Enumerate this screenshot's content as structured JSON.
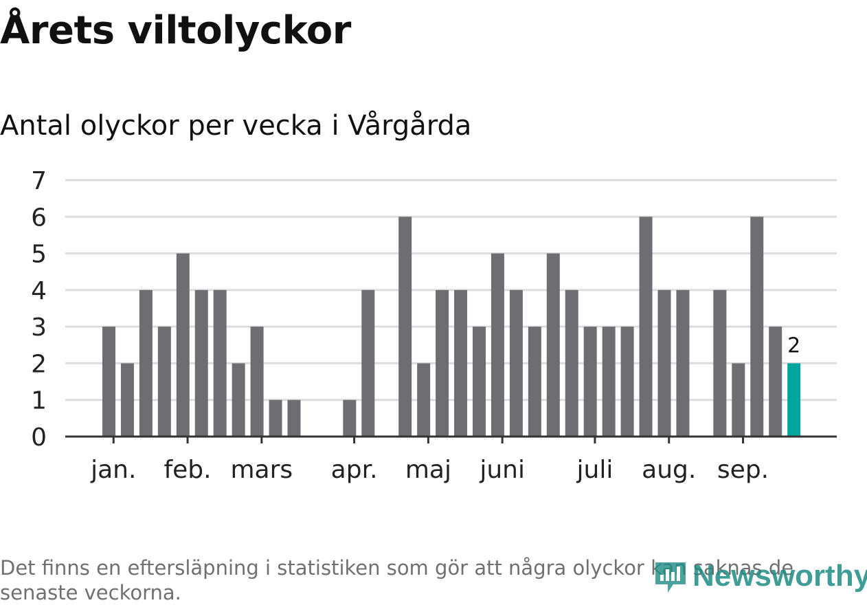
{
  "title": "Årets viltolyckor",
  "subtitle": "Antal olyckor per vecka i Vårgårda",
  "footnote": "Det finns en eftersläpning i statistiken som gör att några olyckor kan saknas de senaste veckorna.",
  "logo": {
    "text": "Newsworthy",
    "icon": "bar-chart-icon"
  },
  "colors": {
    "bar": "#6e6d72",
    "highlight": "#00a69c",
    "grid": "#dcdcdc",
    "axis": "#333333",
    "text": "#222222"
  },
  "chart_data": {
    "type": "bar",
    "title": "Antal olyckor per vecka i Vårgårda",
    "xlabel": "",
    "ylabel": "",
    "ylim": [
      0,
      7
    ],
    "yticks": [
      0,
      1,
      2,
      3,
      4,
      5,
      6,
      7
    ],
    "grid": true,
    "weeks": [
      1,
      2,
      3,
      4,
      5,
      6,
      7,
      8,
      9,
      10,
      11,
      12,
      13,
      14,
      15,
      16,
      17,
      18,
      19,
      20,
      21,
      22,
      23,
      24,
      25,
      26,
      27,
      28,
      29,
      30,
      31,
      32,
      33,
      34,
      35,
      36,
      37,
      38,
      39,
      40
    ],
    "values": [
      0,
      0,
      3,
      2,
      4,
      3,
      5,
      4,
      4,
      2,
      3,
      1,
      1,
      0,
      0,
      1,
      4,
      0,
      6,
      2,
      4,
      4,
      3,
      5,
      4,
      3,
      5,
      4,
      3,
      3,
      3,
      6,
      4,
      4,
      0,
      4,
      2,
      6,
      3,
      2
    ],
    "highlight_index": 39,
    "highlight_label": "2",
    "month_labels": [
      {
        "label": "jan.",
        "week": 3.25
      },
      {
        "label": "feb.",
        "week": 7.25
      },
      {
        "label": "mars",
        "week": 11.25
      },
      {
        "label": "apr.",
        "week": 16.25
      },
      {
        "label": "maj",
        "week": 20.25
      },
      {
        "label": "juni",
        "week": 24.25
      },
      {
        "label": "juli",
        "week": 29.25
      },
      {
        "label": "aug.",
        "week": 33.25
      },
      {
        "label": "sep.",
        "week": 37.25
      }
    ]
  }
}
